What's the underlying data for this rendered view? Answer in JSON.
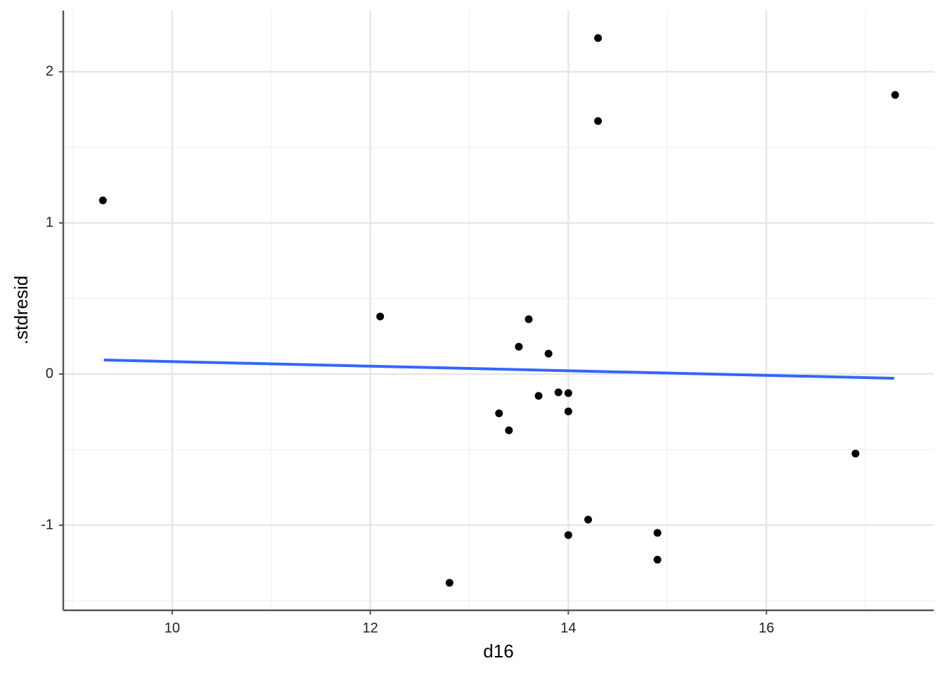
{
  "chart_data": {
    "type": "scatter",
    "x_label": "d16",
    "y_label": ".stdresid",
    "x": [
      9.3,
      12.1,
      12.8,
      13.3,
      13.4,
      13.5,
      13.6,
      13.7,
      13.8,
      13.9,
      14.0,
      14.0,
      14.0,
      14.2,
      14.3,
      14.3,
      14.9,
      14.9,
      16.9,
      17.3
    ],
    "values": [
      1.149,
      0.381,
      -1.381,
      -0.26,
      -0.372,
      0.181,
      0.363,
      -0.144,
      0.135,
      -0.121,
      -0.126,
      -0.247,
      -1.065,
      -0.963,
      2.223,
      1.674,
      -1.051,
      -1.228,
      -0.526,
      1.847
    ],
    "color": "#000000",
    "fit_line": {
      "x": [
        9.31,
        17.29
      ],
      "values": [
        0.093,
        -0.028
      ],
      "color": "#3366ff"
    },
    "xlim": [
      8.9,
      17.69
    ],
    "ylim": [
      -1.563,
      2.405
    ],
    "xticks": [
      10,
      12,
      14,
      16
    ],
    "yticks": [
      -1,
      0,
      1,
      2
    ],
    "x_minor_ticks": [
      9,
      11,
      13,
      15,
      17
    ],
    "y_minor_ticks": [
      -1.5,
      -0.5,
      0.5,
      1.5
    ],
    "grid": true
  }
}
